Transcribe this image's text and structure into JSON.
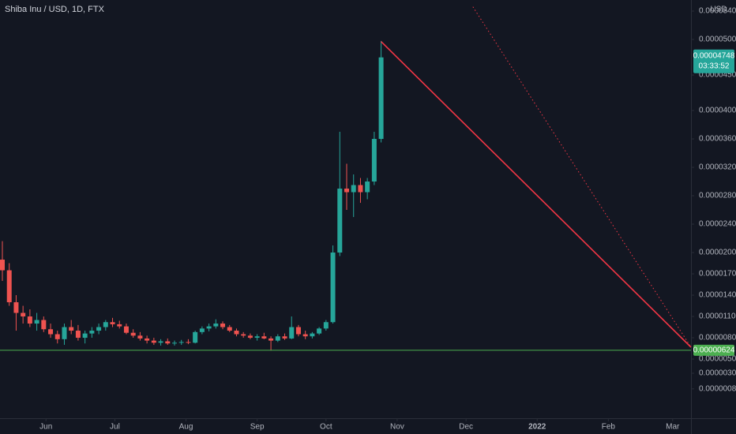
{
  "chart_data": {
    "type": "candlestick",
    "title": "Shiba Inu / USD, 1D, FTX",
    "currency": "USD",
    "countdown": "03:33:52",
    "up_color": "#26a69a",
    "down_color": "#ef5350",
    "x": [
      0,
      3,
      6,
      9,
      12,
      15,
      18,
      21,
      24,
      27,
      30,
      33,
      36,
      39,
      42,
      45,
      48,
      51,
      54,
      57,
      60,
      63,
      66,
      69,
      72,
      75,
      78,
      81,
      84,
      87,
      90,
      93,
      96,
      99,
      102,
      105,
      108,
      111,
      114,
      117,
      120,
      123,
      126,
      129,
      132,
      135,
      138,
      141,
      144,
      147,
      150,
      153,
      156,
      159,
      162,
      165
    ],
    "open": [
      1.9e-05,
      1.75e-05,
      1.3e-05,
      1.15e-05,
      1.1e-05,
      1e-05,
      1.05e-05,
      9.2e-06,
      8.5e-06,
      7.8e-06,
      9.5e-06,
      9e-06,
      8e-06,
      8.6e-06,
      9e-06,
      9.5e-06,
      1.02e-05,
      9.9e-06,
      9.6e-06,
      8.7e-06,
      8.3e-06,
      7.9e-06,
      7.6e-06,
      7.3e-06,
      7.5e-06,
      7.2e-06,
      7.3e-06,
      7.4e-06,
      7.3e-06,
      8.8e-06,
      9.3e-06,
      9.6e-06,
      1e-05,
      9.5e-06,
      9e-06,
      8.5e-06,
      8.3e-06,
      8e-06,
      8.2e-06,
      7.9e-06,
      7.6e-06,
      8.2e-06,
      7.9e-06,
      9.5e-06,
      8.5e-06,
      8.2e-06,
      8.6e-06,
      9.3e-06,
      1.02e-05,
      2e-05,
      2.9e-05,
      2.85e-05,
      2.95e-05,
      2.85e-05,
      3e-05,
      3.6e-05
    ],
    "high": [
      2.16e-05,
      1.85e-05,
      1.4e-05,
      1.25e-05,
      1.2e-05,
      1.15e-05,
      1.1e-05,
      1e-05,
      9e-06,
      1e-05,
      1.05e-05,
      9.8e-06,
      9e-06,
      9.5e-06,
      1e-05,
      1.05e-05,
      1.08e-05,
      1.04e-05,
      1e-05,
      9.2e-06,
      8.8e-06,
      8.3e-06,
      8e-06,
      7.8e-06,
      7.9e-06,
      7.6e-06,
      7.7e-06,
      7.8e-06,
      9e-06,
      9.6e-06,
      1e-05,
      1.06e-05,
      1.03e-05,
      9.8e-06,
      9.3e-06,
      8.8e-06,
      8.6e-06,
      8.5e-06,
      8.7e-06,
      8.2e-06,
      8.5e-06,
      8.6e-06,
      1.1e-05,
      9.8e-06,
      9e-06,
      8.8e-06,
      9.5e-06,
      1.05e-05,
      2.1e-05,
      3.7e-05,
      3.25e-05,
      3.1e-05,
      3.05e-05,
      3.05e-05,
      3.7e-05,
      4.98e-05
    ],
    "low": [
      1.6e-05,
      1.25e-05,
      9e-06,
      1e-05,
      9.5e-06,
      9e-06,
      8.8e-06,
      8e-06,
      7.2e-06,
      7e-06,
      8.5e-06,
      7.6e-06,
      7.2e-06,
      8e-06,
      8.5e-06,
      9e-06,
      9.5e-06,
      9.3e-06,
      8.5e-06,
      8e-06,
      7.6e-06,
      7.2e-06,
      7e-06,
      6.9e-06,
      7e-06,
      6.9e-06,
      7e-06,
      7.1e-06,
      7.2e-06,
      8.5e-06,
      8.9e-06,
      9.3e-06,
      9.2e-06,
      8.8e-06,
      8.2e-06,
      8e-06,
      7.8e-06,
      7.6e-06,
      7.8e-06,
      6.2e-06,
      7.4e-06,
      7.7e-06,
      7.8e-06,
      8.2e-06,
      7.8e-06,
      7.9e-06,
      8.4e-06,
      9e-06,
      1e-05,
      1.95e-05,
      2.6e-05,
      2.5e-05,
      2.7e-05,
      2.75e-05,
      2.95e-05,
      3.55e-05
    ],
    "close": [
      1.75e-05,
      1.3e-05,
      1.15e-05,
      1.1e-05,
      1e-05,
      1.05e-05,
      9.2e-06,
      8.5e-06,
      7.8e-06,
      9.5e-06,
      9e-06,
      8e-06,
      8.6e-06,
      9e-06,
      9.5e-06,
      1.02e-05,
      9.9e-06,
      9.6e-06,
      8.7e-06,
      8.3e-06,
      7.9e-06,
      7.6e-06,
      7.3e-06,
      7.5e-06,
      7.2e-06,
      7.3e-06,
      7.4e-06,
      7.3e-06,
      8.8e-06,
      9.3e-06,
      9.6e-06,
      1e-05,
      9.5e-06,
      9e-06,
      8.5e-06,
      8.3e-06,
      8e-06,
      8.2e-06,
      7.9e-06,
      7.6e-06,
      8.2e-06,
      7.9e-06,
      9.5e-06,
      8.5e-06,
      8.2e-06,
      8.6e-06,
      9.3e-06,
      1.02e-05,
      2e-05,
      2.9e-05,
      2.85e-05,
      2.95e-05,
      2.85e-05,
      3e-05,
      3.6e-05,
      4.748e-05
    ],
    "last_price": {
      "value": 4.748e-05,
      "label": "0.00004748"
    },
    "hline": {
      "value": 6.24e-06,
      "label": "0.00000624",
      "color": "#4caf50"
    },
    "drawings": [
      {
        "style": "solid",
        "color": "#f23645",
        "x": [
          165,
          300
        ],
        "y": [
          4.97e-05,
          6.67e-06
        ]
      },
      {
        "style": "dotted",
        "color": "#f23645",
        "x": [
          205,
          300
        ],
        "y": [
          5.46e-05,
          6.67e-06
        ]
      }
    ],
    "xlim": [
      0,
      300
    ],
    "ylim": [
      -3.33e-06,
      5.556e-05
    ],
    "xticks": [
      {
        "value": 19,
        "label": "Jun"
      },
      {
        "value": 49,
        "label": "Jul"
      },
      {
        "value": 80,
        "label": "Aug"
      },
      {
        "value": 111,
        "label": "Sep"
      },
      {
        "value": 141,
        "label": "Oct"
      },
      {
        "value": 172,
        "label": "Nov"
      },
      {
        "value": 202,
        "label": "Dec"
      },
      {
        "value": 233,
        "label": "2022"
      },
      {
        "value": 264,
        "label": "Feb"
      },
      {
        "value": 292,
        "label": "Mar"
      }
    ],
    "yticks": [
      {
        "value": 5.4e-05,
        "label": "0.00005400"
      },
      {
        "value": 5e-05,
        "label": "0.00005000"
      },
      {
        "value": 4.5e-05,
        "label": "0.00004500"
      },
      {
        "value": 4e-05,
        "label": "0.00004000"
      },
      {
        "value": 3.6e-05,
        "label": "0.00003600"
      },
      {
        "value": 3.2e-05,
        "label": "0.00003200"
      },
      {
        "value": 2.8e-05,
        "label": "0.00002800"
      },
      {
        "value": 2.4e-05,
        "label": "0.00002400"
      },
      {
        "value": 2e-05,
        "label": "0.00002000"
      },
      {
        "value": 1.7e-05,
        "label": "0.00001700"
      },
      {
        "value": 1.4e-05,
        "label": "0.00001400"
      },
      {
        "value": 1.1e-05,
        "label": "0.00001100"
      },
      {
        "value": 8e-06,
        "label": "0.00000800"
      },
      {
        "value": 5e-06,
        "label": "0.00000500"
      },
      {
        "value": 3e-06,
        "label": "0.00000300"
      },
      {
        "value": 8e-07,
        "label": "0.00000080"
      }
    ]
  }
}
